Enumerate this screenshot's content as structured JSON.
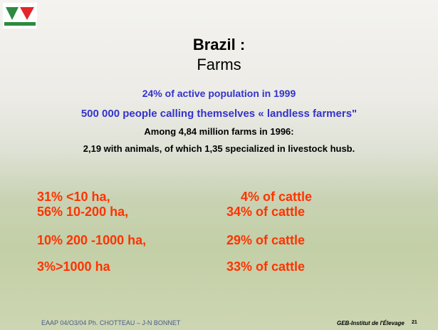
{
  "title": "Brazil :",
  "subtitle": "Farms",
  "lines": [
    "24% of active population in 1999",
    "500 000 people calling themselves « landless farmers\"",
    "Among 4,84 million farms in 1996:",
    "2,19 with animals, of which 1,35 specialized in livestock husb."
  ],
  "table": {
    "rows": [
      [
        "31% <10 ha,",
        "4% of cattle"
      ],
      [
        "56% 10-200 ha,",
        "34% of cattle"
      ],
      [
        "10% 200 -1000 ha,",
        "29% of cattle"
      ],
      [
        "3%>1000 ha",
        "33% of cattle"
      ]
    ]
  },
  "footer": {
    "authors": "EAAP 04/O3/04 Ph. CHOTTEAU – J-N BONNET",
    "institute": "GEB-Institut de l'Élevage",
    "page": "21"
  }
}
